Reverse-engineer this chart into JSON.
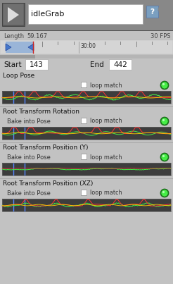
{
  "bg_color": "#c2c2c2",
  "animation_name": "idleGrab",
  "length_value": "59.167",
  "fps_label": "30 FPS",
  "start_value": "143",
  "end_value": "442",
  "timeline_marker": "30:00",
  "loop_match_label": "loop match",
  "blue_line_color": "#5588ff",
  "chart_green": "#44ee44",
  "chart_red": "#ff3333",
  "chart_yellow": "#ffcc00",
  "chart_bg": "#3d3d3d",
  "sections": [
    {
      "title": "Loop Pose",
      "bake": false,
      "style": "loop_pose"
    },
    {
      "title": "Root Transform Rotation",
      "bake": true,
      "style": "rotation"
    },
    {
      "title": "Root Transform Position (Y)",
      "bake": true,
      "style": "pos_y"
    },
    {
      "title": "Root Transform Position (XZ)",
      "bake": true,
      "style": "pos_xz"
    }
  ]
}
